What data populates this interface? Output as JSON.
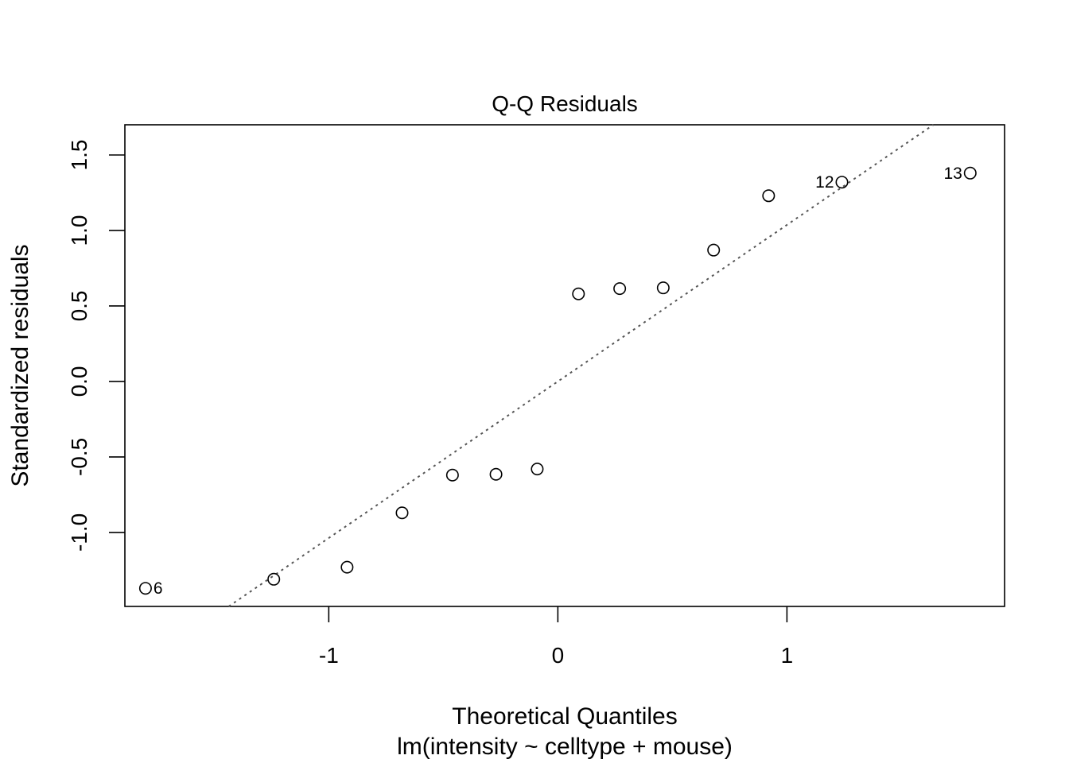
{
  "chart_data": {
    "type": "scatter",
    "title": "Q-Q Residuals",
    "xlabel": "Theoretical Quantiles",
    "subtitle": "lm(intensity ~ celltype + mouse)",
    "ylabel": "Standardized residuals",
    "xlim": [
      -1.89,
      1.95
    ],
    "ylim": [
      -1.49,
      1.7
    ],
    "x_ticks": [
      {
        "value": -1,
        "label": "-1"
      },
      {
        "value": 0,
        "label": "0"
      },
      {
        "value": 1,
        "label": "1"
      }
    ],
    "y_ticks": [
      {
        "value": -1.0,
        "label": "-1.0"
      },
      {
        "value": -0.5,
        "label": "-0.5"
      },
      {
        "value": 0.0,
        "label": "0.0"
      },
      {
        "value": 0.5,
        "label": "0.5"
      },
      {
        "value": 1.0,
        "label": "1.0"
      },
      {
        "value": 1.5,
        "label": "1.5"
      }
    ],
    "points": [
      {
        "x": -1.8,
        "y": -1.37,
        "label": "6",
        "label_side": "right"
      },
      {
        "x": -1.24,
        "y": -1.31,
        "label": ""
      },
      {
        "x": -0.92,
        "y": -1.23,
        "label": ""
      },
      {
        "x": -0.68,
        "y": -0.87,
        "label": ""
      },
      {
        "x": -0.46,
        "y": -0.62,
        "label": ""
      },
      {
        "x": -0.27,
        "y": -0.615,
        "label": ""
      },
      {
        "x": -0.09,
        "y": -0.58,
        "label": ""
      },
      {
        "x": 0.09,
        "y": 0.58,
        "label": ""
      },
      {
        "x": 0.27,
        "y": 0.615,
        "label": ""
      },
      {
        "x": 0.46,
        "y": 0.62,
        "label": ""
      },
      {
        "x": 0.68,
        "y": 0.87,
        "label": ""
      },
      {
        "x": 0.92,
        "y": 1.23,
        "label": ""
      },
      {
        "x": 1.24,
        "y": 1.32,
        "label": "12",
        "label_side": "left"
      },
      {
        "x": 1.8,
        "y": 1.38,
        "label": "13",
        "label_side": "left"
      }
    ],
    "reference_line": {
      "slope": 1.037,
      "intercept": 0.0,
      "style": "dotted",
      "color": "#555555"
    },
    "grid": false,
    "legend": "none"
  }
}
